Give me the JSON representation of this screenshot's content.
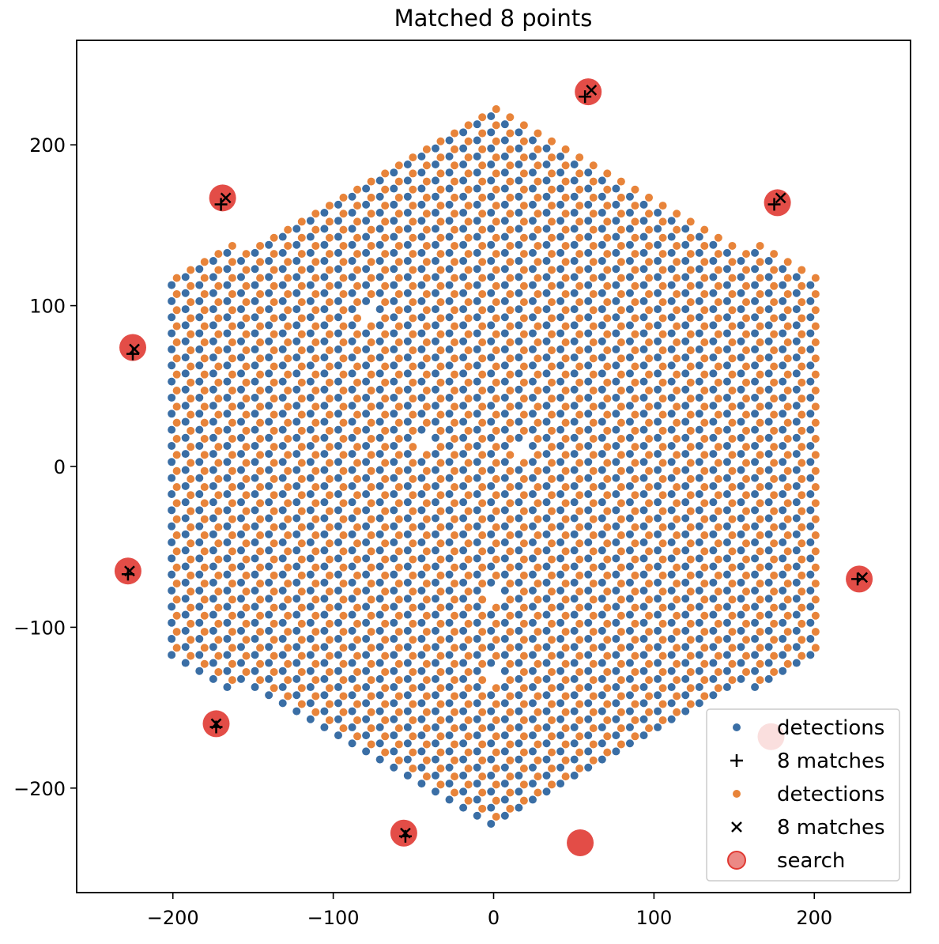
{
  "chart_data": {
    "type": "scatter",
    "title": "Matched 8 points",
    "xlabel": "",
    "ylabel": "",
    "xlim": [
      -260,
      260
    ],
    "ylim": [
      -265,
      265
    ],
    "xticks": [
      -200,
      -100,
      0,
      100,
      200
    ],
    "yticks": [
      -200,
      -100,
      0,
      100,
      200
    ],
    "xtick_labels": [
      "−200",
      "−100",
      "0",
      "100",
      "200"
    ],
    "ytick_labels": [
      "−200",
      "−100",
      "0",
      "100",
      "200"
    ],
    "grid": false,
    "legend_position": "lower-right",
    "hexagon": {
      "description_values": "roughly hexagonal grid of detections",
      "vertices": [
        [
          0,
          -228
        ],
        [
          200,
          -115
        ],
        [
          200,
          115
        ],
        [
          0,
          228
        ],
        [
          -200,
          115
        ],
        [
          -200,
          -115
        ]
      ],
      "pitch": 10,
      "missing": [
        [
          -45,
          15
        ],
        [
          -90,
          95
        ],
        [
          -81,
          97
        ],
        [
          5,
          10
        ],
        [
          50,
          -25
        ],
        [
          18,
          10
        ],
        [
          32,
          15
        ],
        [
          -2,
          -55
        ],
        [
          -2,
          -80
        ],
        [
          -2,
          -130
        ]
      ]
    },
    "colors": {
      "blue": "#3a6ea5",
      "orange": "#e8843a",
      "search": "#e03a33"
    },
    "series": [
      {
        "name": "detections",
        "color": "#3a6ea5",
        "offset": [
          -1.6,
          -2.2
        ]
      },
      {
        "name": "8 matches",
        "marker": "+",
        "color": "#000000",
        "points": [
          [
            57,
            230
          ],
          [
            175,
            163
          ],
          [
            -170,
            163
          ],
          [
            -225,
            70
          ],
          [
            -228,
            -67
          ],
          [
            -173,
            -162
          ],
          [
            -55,
            -230
          ],
          [
            227,
            -70
          ]
        ]
      },
      {
        "name": "detections",
        "color": "#e8843a",
        "offset": [
          1.6,
          2.2
        ]
      },
      {
        "name": "8 matches",
        "marker": "x",
        "color": "#000000",
        "points": [
          [
            61,
            234
          ],
          [
            179,
            167
          ],
          [
            -167,
            167
          ],
          [
            -224,
            73
          ],
          [
            -227,
            -65
          ],
          [
            -173,
            -160
          ],
          [
            -55,
            -228
          ],
          [
            230,
            -69
          ]
        ]
      },
      {
        "name": "search",
        "marker": "o",
        "color": "#e03a33",
        "points": [
          [
            59,
            233
          ],
          [
            177,
            164
          ],
          [
            -169,
            167
          ],
          [
            -225,
            74
          ],
          [
            -228,
            -65
          ],
          [
            -173,
            -160
          ],
          [
            -56,
            -228
          ],
          [
            228,
            -70
          ],
          [
            173,
            -168
          ],
          [
            54,
            -234
          ]
        ]
      }
    ]
  }
}
